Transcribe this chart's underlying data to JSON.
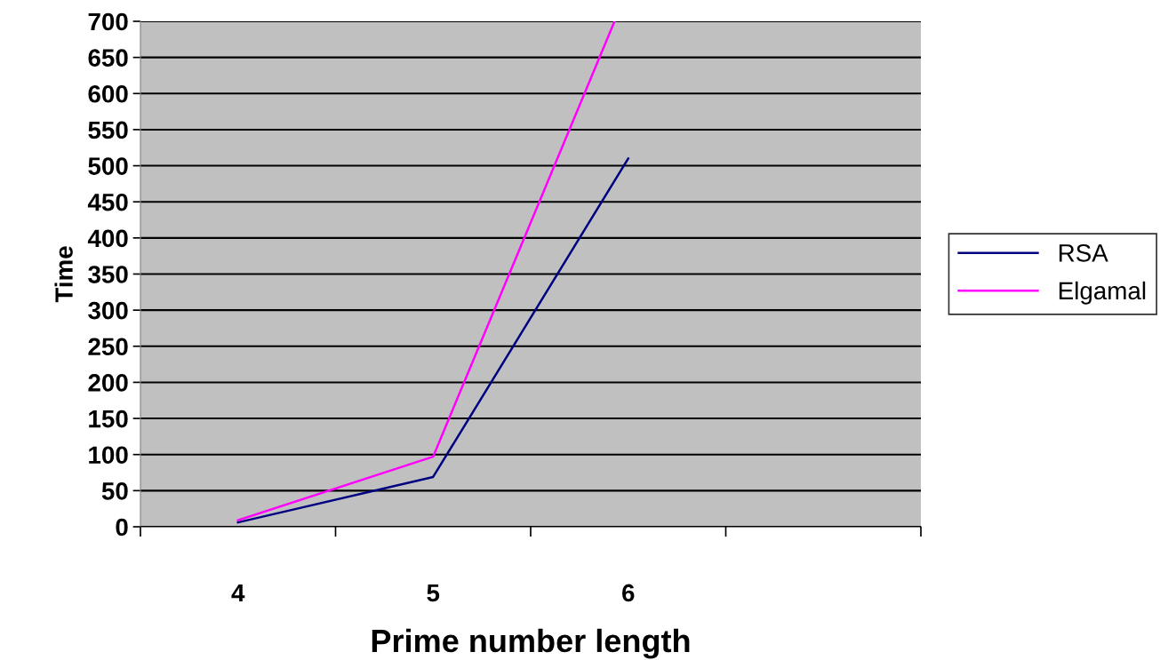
{
  "chart_data": {
    "type": "line",
    "xlabel": "Prime number length",
    "ylabel": "Time",
    "x": [
      4,
      5,
      6
    ],
    "series": [
      {
        "name": "RSA",
        "color": "#000080",
        "values": [
          6,
          69,
          510
        ]
      },
      {
        "name": "Elgamal",
        "color": "#ff00ff",
        "x": [
          4,
          5,
          5.93
        ],
        "values": [
          9,
          97,
          700
        ]
      }
    ],
    "xlim": [
      3.5,
      7.5
    ],
    "xticks": [
      {
        "value": 3.5,
        "label": null
      },
      4,
      {
        "value": 4.5,
        "label": null
      },
      5,
      {
        "value": 5.5,
        "label": null
      },
      6,
      {
        "value": 6.5,
        "label": null
      },
      {
        "value": 7.5,
        "label": null
      }
    ],
    "ylim": [
      0,
      700
    ],
    "yticks": [
      0,
      50,
      100,
      150,
      200,
      250,
      300,
      350,
      400,
      450,
      500,
      550,
      600,
      650,
      700
    ],
    "grid": "y",
    "legend": "right",
    "marker": "none",
    "line_style": "solid"
  }
}
